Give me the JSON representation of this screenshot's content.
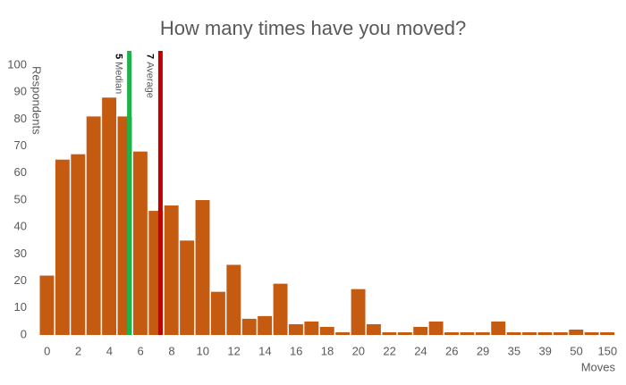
{
  "chart_data": {
    "type": "bar",
    "title": "How many times have you moved?",
    "y_label": "Respondents",
    "x_label": "Moves",
    "categories": [
      "0",
      null,
      "2",
      null,
      "4",
      null,
      "6",
      null,
      "8",
      null,
      "10",
      null,
      "12",
      null,
      "14",
      null,
      "16",
      null,
      "18",
      null,
      "20",
      null,
      "22",
      null,
      "24",
      null,
      "26",
      null,
      "29",
      null,
      "35",
      null,
      "39",
      null,
      "50",
      null,
      "150"
    ],
    "values": [
      22,
      65,
      67,
      81,
      88,
      81,
      68,
      46,
      48,
      35,
      50,
      16,
      26,
      6,
      7,
      19,
      4,
      5,
      3,
      1,
      17,
      4,
      1,
      1,
      3,
      5,
      1,
      1,
      1,
      5,
      1,
      1,
      1,
      1,
      2,
      1,
      1
    ],
    "color": "#c55a11",
    "ylim": [
      0,
      100
    ],
    "yticks": [
      0,
      10,
      20,
      30,
      40,
      50,
      60,
      70,
      80,
      90,
      100
    ],
    "grid": false,
    "reference_lines": [
      {
        "value": 5,
        "label": "Median",
        "color": "#1db34a"
      },
      {
        "value": 7,
        "label": "Average",
        "color": "#c00000"
      }
    ]
  }
}
